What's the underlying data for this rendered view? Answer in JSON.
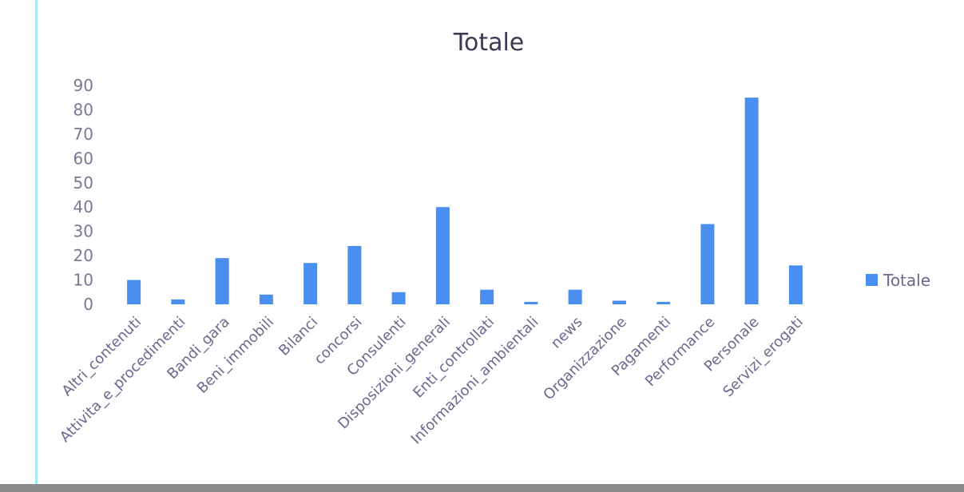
{
  "chart_data": {
    "type": "bar",
    "title": "Totale",
    "xlabel": "",
    "ylabel": "",
    "ylim": [
      0,
      90
    ],
    "yticks": [
      0,
      10,
      20,
      30,
      40,
      50,
      60,
      70,
      80,
      90
    ],
    "grid": false,
    "legend_position": "right",
    "categories": [
      "Altri_contenuti",
      "Attivita_e_procedimenti",
      "Bandi_gara",
      "Beni_immobili",
      "Bilanci",
      "concorsi",
      "Consulenti",
      "Disposizioni_generali",
      "Enti_controllati",
      "Informazioni_ambientali",
      "news",
      "Organizzazione",
      "Pagamenti",
      "Performance",
      "Personale",
      "Servizi_erogati"
    ],
    "series": [
      {
        "name": "Totale",
        "color": "#4a8ef0",
        "values": [
          10,
          2,
          19,
          4,
          17,
          24,
          5,
          40,
          6,
          1,
          6,
          1.5,
          1,
          33,
          85,
          16
        ]
      }
    ]
  }
}
